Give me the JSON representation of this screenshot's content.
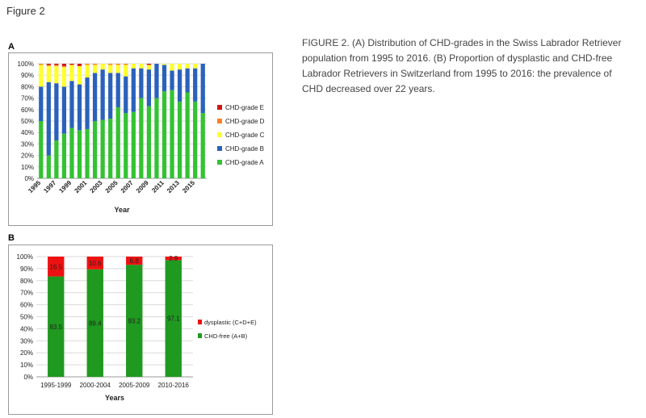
{
  "figure_label": "Figure 2",
  "caption": "FIGURE 2. (A) Distribution of CHD-grades in the Swiss Labrador Retriever population from 1995 to 2016. (B) Proportion of dysplastic and CHD-free Labrador Retrievers in Switzerland from 1995 to 2016: the prevalence of CHD decreased over 22 years.",
  "colors": {
    "grade_a": "#33c233",
    "grade_b": "#2a62bb",
    "grade_c": "#ffff2e",
    "grade_d": "#ff7f27",
    "grade_e": "#d01414",
    "chd_free": "#1f991f",
    "dysplastic": "#ee1111"
  },
  "chart_data": [
    {
      "panel": "A",
      "type": "bar",
      "stacked": true,
      "xlabel": "Year",
      "ylabel": "",
      "ylim": [
        0,
        100
      ],
      "y_ticks": [
        "0%",
        "10%",
        "20%",
        "30%",
        "40%",
        "50%",
        "60%",
        "70%",
        "80%",
        "90%",
        "100%"
      ],
      "categories": [
        "1995",
        "1996",
        "1997",
        "1998",
        "1999",
        "2000",
        "2001",
        "2002",
        "2003",
        "2004",
        "2005",
        "2006",
        "2007",
        "2008",
        "2009",
        "2010",
        "2011",
        "2012",
        "2013",
        "2014",
        "2015",
        "2016"
      ],
      "x_tick_labels": [
        "1995",
        "1997",
        "1999",
        "2001",
        "2003",
        "2005",
        "2007",
        "2009",
        "2011",
        "2013",
        "2015"
      ],
      "legend_position": "right",
      "series": [
        {
          "name": "CHD-grade A",
          "values": [
            50,
            20,
            33,
            39,
            44,
            42,
            43,
            50,
            51,
            52,
            62,
            57,
            58,
            70,
            63,
            70,
            76,
            77,
            67,
            75,
            67,
            57
          ]
        },
        {
          "name": "CHD-grade B",
          "values": [
            30,
            64,
            50,
            41,
            41,
            40,
            45,
            42,
            44,
            40,
            30,
            32,
            38,
            26,
            32,
            30,
            23,
            17,
            28,
            21,
            29,
            43
          ]
        },
        {
          "name": "CHD-grade C",
          "values": [
            19,
            14,
            15,
            17,
            14,
            16,
            11,
            7,
            5,
            7,
            7,
            10,
            4,
            4,
            4,
            0,
            1,
            6,
            5,
            4,
            4,
            0
          ]
        },
        {
          "name": "CHD-grade D",
          "values": [
            1,
            1,
            1,
            1,
            0,
            0,
            1,
            1,
            0,
            1,
            1,
            1,
            0,
            0,
            0,
            0,
            0,
            0,
            0,
            0,
            0,
            0
          ]
        },
        {
          "name": "CHD-grade E",
          "values": [
            0,
            1,
            1,
            2,
            1,
            2,
            0,
            0,
            0,
            0,
            0,
            0,
            0,
            0,
            1,
            0,
            0,
            0,
            0,
            0,
            0,
            0
          ]
        }
      ],
      "legend_order": [
        "CHD-grade E",
        "CHD-grade D",
        "CHD-grade C",
        "CHD-grade B",
        "CHD-grade A"
      ]
    },
    {
      "panel": "B",
      "type": "bar",
      "stacked": true,
      "xlabel": "Years",
      "ylabel": "",
      "ylim": [
        0,
        100
      ],
      "y_ticks": [
        "0%",
        "10%",
        "20%",
        "30%",
        "40%",
        "50%",
        "60%",
        "70%",
        "80%",
        "90%",
        "100%"
      ],
      "categories": [
        "1995-1999",
        "2000-2004",
        "2005-2009",
        "2010-2016"
      ],
      "legend_position": "right",
      "series": [
        {
          "name": "CHD-free (A+B)",
          "values": [
            83.5,
            89.4,
            93.2,
            97.1
          ],
          "labels": [
            "83.5",
            "89.4",
            "93.2",
            "97.1"
          ]
        },
        {
          "name": "dysplastic (C+D+E)",
          "values": [
            16.5,
            10.6,
            6.8,
            2.9
          ],
          "labels": [
            "16.5",
            "10.6",
            "6.8",
            "2.9"
          ]
        }
      ],
      "legend_order": [
        "dysplastic (C+D+E)",
        "CHD-free (A+B)"
      ]
    }
  ]
}
